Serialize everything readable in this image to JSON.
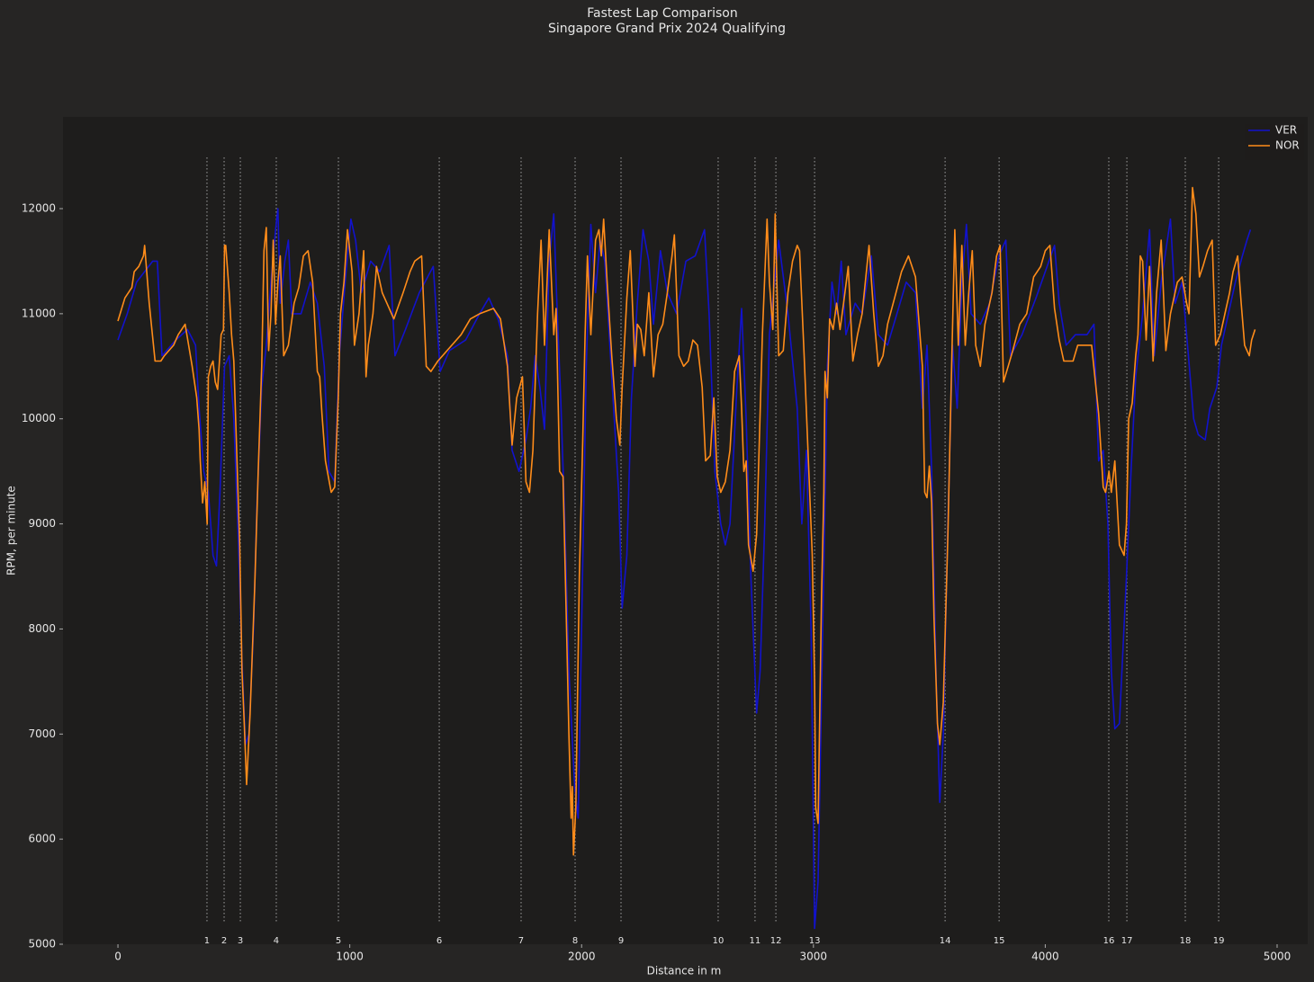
{
  "chart_data": {
    "type": "line",
    "title": "Fastest Lap Comparison",
    "subtitle": "Singapore Grand Prix 2024 Qualifying",
    "x_label": "Distance in m",
    "y_label": "RPM, per minute",
    "xlim": [
      -237,
      5132
    ],
    "ylim": [
      5000,
      12873
    ],
    "xticks": [
      0,
      1000,
      2000,
      3000,
      4000,
      5000
    ],
    "yticks": [
      5000,
      6000,
      7000,
      8000,
      9000,
      10000,
      11000,
      12000
    ],
    "grid": false,
    "legend": "upper right",
    "corner_line_range": [
      5214,
      12488
    ],
    "corner_color": "#8a8a8a",
    "corners": [
      {
        "number": 1,
        "distance": 384
      },
      {
        "number": 2,
        "distance": 458
      },
      {
        "number": 3,
        "distance": 528
      },
      {
        "number": 4,
        "distance": 683
      },
      {
        "number": 5,
        "distance": 951
      },
      {
        "number": 6,
        "distance": 1386
      },
      {
        "number": 7,
        "distance": 1739
      },
      {
        "number": 8,
        "distance": 1972
      },
      {
        "number": 9,
        "distance": 2170
      },
      {
        "number": 10,
        "distance": 2589
      },
      {
        "number": 11,
        "distance": 2748
      },
      {
        "number": 12,
        "distance": 2838
      },
      {
        "number": 13,
        "distance": 3005
      },
      {
        "number": 14,
        "distance": 3568
      },
      {
        "number": 15,
        "distance": 3801
      },
      {
        "number": 16,
        "distance": 4274
      },
      {
        "number": 17,
        "distance": 4352
      },
      {
        "number": 18,
        "distance": 4604
      },
      {
        "number": 19,
        "distance": 4748
      }
    ],
    "series": [
      {
        "name": "VER",
        "color": "#1212cc",
        "x": [
          0,
          40,
          80,
          150,
          170,
          190,
          250,
          300,
          335,
          350,
          370,
          390,
          410,
          425,
          440,
          460,
          480,
          500,
          520,
          535,
          550,
          565,
          585,
          600,
          620,
          640,
          660,
          680,
          690,
          700,
          720,
          735,
          750,
          790,
          830,
          860,
          890,
          910,
          935,
          955,
          980,
          1005,
          1025,
          1050,
          1090,
          1130,
          1170,
          1195,
          1240,
          1300,
          1360,
          1390,
          1430,
          1500,
          1560,
          1600,
          1640,
          1680,
          1700,
          1730,
          1760,
          1780,
          1800,
          1820,
          1840,
          1860,
          1880,
          1895,
          1910,
          1925,
          1945,
          1970,
          1985,
          2000,
          2020,
          2040,
          2060,
          2080,
          2100,
          2130,
          2160,
          2175,
          2195,
          2215,
          2240,
          2265,
          2290,
          2310,
          2340,
          2370,
          2410,
          2450,
          2490,
          2530,
          2550,
          2575,
          2600,
          2620,
          2640,
          2670,
          2690,
          2710,
          2730,
          2755,
          2770,
          2790,
          2810,
          2850,
          2890,
          2930,
          2950,
          2970,
          2990,
          3005,
          3020,
          3040,
          3060,
          3080,
          3100,
          3120,
          3140,
          3180,
          3210,
          3250,
          3280,
          3320,
          3360,
          3400,
          3440,
          3470,
          3490,
          3510,
          3530,
          3545,
          3560,
          3580,
          3600,
          3620,
          3640,
          3660,
          3680,
          3720,
          3760,
          3800,
          3830,
          3850,
          3900,
          3960,
          4000,
          4040,
          4060,
          4090,
          4130,
          4180,
          4210,
          4230,
          4250,
          4270,
          4285,
          4300,
          4320,
          4350,
          4370,
          4390,
          4420,
          4450,
          4470,
          4500,
          4540,
          4560,
          4590,
          4610,
          4640,
          4660,
          4690,
          4710,
          4740,
          4760,
          4790,
          4820,
          4850,
          4870,
          4885
        ],
        "values": [
          10750,
          11000,
          11300,
          11500,
          11500,
          10600,
          10750,
          10850,
          10700,
          10100,
          9500,
          9300,
          8700,
          8600,
          9300,
          10500,
          10600,
          10000,
          8800,
          7700,
          6900,
          7000,
          8000,
          9200,
          10300,
          10700,
          11300,
          11800,
          12000,
          11100,
          11500,
          11700,
          11000,
          11000,
          11300,
          11100,
          10500,
          9500,
          9400,
          10600,
          11300,
          11900,
          11700,
          11200,
          11500,
          11400,
          11650,
          10600,
          10850,
          11200,
          11450,
          10450,
          10650,
          10750,
          11000,
          11150,
          10950,
          10600,
          9700,
          9500,
          9800,
          10100,
          10600,
          10300,
          9900,
          11500,
          11950,
          11000,
          10200,
          9200,
          7600,
          6500,
          6200,
          8000,
          10500,
          11850,
          11200,
          11700,
          11500,
          10400,
          9300,
          8200,
          8700,
          10200,
          11100,
          11800,
          11500,
          10900,
          11600,
          11200,
          11000,
          11500,
          11550,
          11800,
          11000,
          9500,
          9000,
          8800,
          9000,
          10300,
          11050,
          10000,
          8500,
          7200,
          7600,
          9000,
          10800,
          11700,
          11000,
          10100,
          9000,
          9700,
          8000,
          5150,
          5600,
          8000,
          10500,
          11300,
          11000,
          11500,
          10800,
          11100,
          11000,
          11550,
          10800,
          10700,
          11000,
          11300,
          11200,
          10100,
          10700,
          9500,
          7500,
          6350,
          7000,
          9000,
          10700,
          10100,
          11300,
          11850,
          11000,
          10900,
          11100,
          11550,
          11700,
          10600,
          10800,
          11150,
          11400,
          11650,
          11100,
          10700,
          10800,
          10800,
          10900,
          9600,
          9700,
          9000,
          7600,
          7050,
          7100,
          8500,
          9500,
          10400,
          11000,
          11800,
          10600,
          11300,
          11900,
          11100,
          11300,
          10800,
          10000,
          9850,
          9800,
          10100,
          10300,
          10700,
          11000,
          11300,
          11550,
          11700,
          11800
        ]
      },
      {
        "name": "NOR",
        "color": "#ff8c1a",
        "x": [
          0,
          30,
          60,
          70,
          90,
          110,
          115,
          135,
          160,
          185,
          200,
          240,
          260,
          290,
          320,
          340,
          350,
          355,
          365,
          375,
          385,
          390,
          400,
          410,
          420,
          430,
          445,
          455,
          460,
          465,
          480,
          490,
          500,
          515,
          525,
          535,
          545,
          555,
          570,
          590,
          605,
          620,
          630,
          640,
          650,
          660,
          670,
          680,
          690,
          700,
          715,
          735,
          760,
          780,
          800,
          820,
          840,
          860,
          870,
          880,
          895,
          920,
          935,
          950,
          960,
          975,
          990,
          1010,
          1020,
          1040,
          1060,
          1070,
          1080,
          1100,
          1115,
          1140,
          1160,
          1190,
          1230,
          1260,
          1280,
          1310,
          1330,
          1350,
          1380,
          1400,
          1440,
          1480,
          1520,
          1560,
          1620,
          1650,
          1680,
          1700,
          1720,
          1745,
          1760,
          1775,
          1790,
          1810,
          1825,
          1840,
          1860,
          1880,
          1890,
          1905,
          1920,
          1935,
          1945,
          1955,
          1960,
          1965,
          1975,
          1990,
          2005,
          2015,
          2025,
          2040,
          2060,
          2075,
          2085,
          2095,
          2110,
          2130,
          2150,
          2165,
          2175,
          2195,
          2210,
          2230,
          2240,
          2255,
          2270,
          2290,
          2310,
          2330,
          2350,
          2370,
          2390,
          2400,
          2420,
          2440,
          2460,
          2480,
          2500,
          2520,
          2535,
          2555,
          2570,
          2585,
          2600,
          2620,
          2640,
          2660,
          2680,
          2690,
          2700,
          2710,
          2720,
          2740,
          2755,
          2780,
          2800,
          2810,
          2825,
          2835,
          2850,
          2870,
          2890,
          2910,
          2930,
          2940,
          2960,
          2980,
          2995,
          3005,
          3010,
          3020,
          3035,
          3045,
          3050,
          3060,
          3070,
          3085,
          3100,
          3115,
          3130,
          3150,
          3170,
          3190,
          3210,
          3240,
          3260,
          3280,
          3300,
          3320,
          3350,
          3380,
          3410,
          3440,
          3470,
          3480,
          3490,
          3500,
          3510,
          3520,
          3535,
          3545,
          3560,
          3580,
          3595,
          3610,
          3625,
          3640,
          3655,
          3670,
          3685,
          3700,
          3720,
          3740,
          3770,
          3790,
          3805,
          3820,
          3840,
          3860,
          3890,
          3920,
          3950,
          3980,
          4000,
          4020,
          4040,
          4060,
          4080,
          4120,
          4140,
          4180,
          4200,
          4230,
          4250,
          4260,
          4275,
          4285,
          4300,
          4320,
          4340,
          4350,
          4360,
          4375,
          4390,
          4400,
          4410,
          4420,
          4435,
          4450,
          4465,
          4480,
          4500,
          4520,
          4540,
          4570,
          4590,
          4610,
          4620,
          4635,
          4650,
          4665,
          4680,
          4700,
          4720,
          4735,
          4755,
          4775,
          4795,
          4810,
          4830,
          4845,
          4860,
          4880,
          4890,
          4905
        ],
        "values": [
          10930,
          11150,
          11250,
          11400,
          11450,
          11550,
          11650,
          11100,
          10550,
          10550,
          10600,
          10700,
          10800,
          10900,
          10500,
          10200,
          9900,
          9600,
          9200,
          9400,
          9000,
          10400,
          10500,
          10550,
          10350,
          10280,
          10800,
          10850,
          11650,
          11650,
          11200,
          10800,
          10550,
          9500,
          8800,
          7600,
          7100,
          6520,
          7200,
          8400,
          9500,
          10500,
          11600,
          11820,
          10650,
          11000,
          11700,
          10900,
          11300,
          11550,
          10600,
          10700,
          11100,
          11250,
          11550,
          11600,
          11300,
          10450,
          10400,
          10050,
          9600,
          9300,
          9350,
          10200,
          11000,
          11300,
          11800,
          11400,
          10700,
          11000,
          11600,
          10400,
          10700,
          11000,
          11450,
          11200,
          11100,
          10950,
          11200,
          11400,
          11500,
          11550,
          10500,
          10450,
          10550,
          10600,
          10700,
          10800,
          10950,
          11000,
          11050,
          10950,
          10500,
          9750,
          10200,
          10400,
          9400,
          9300,
          9700,
          11000,
          11700,
          10700,
          11800,
          10800,
          11050,
          9500,
          9450,
          8000,
          7000,
          6200,
          6500,
          5850,
          6300,
          8500,
          9800,
          10800,
          11550,
          10800,
          11700,
          11800,
          11550,
          11900,
          11300,
          10600,
          10000,
          9750,
          10300,
          11150,
          11600,
          10500,
          10900,
          10850,
          10600,
          11200,
          10400,
          10800,
          10900,
          11200,
          11550,
          11750,
          10600,
          10500,
          10550,
          10750,
          10700,
          10300,
          9600,
          9650,
          10200,
          9450,
          9300,
          9400,
          9700,
          10450,
          10600,
          10100,
          9500,
          9600,
          8800,
          8550,
          8900,
          10800,
          11900,
          11300,
          10850,
          11950,
          10600,
          10650,
          11200,
          11500,
          11650,
          11600,
          10600,
          9500,
          8700,
          7500,
          6300,
          6150,
          8300,
          9300,
          10450,
          10200,
          10950,
          10850,
          11100,
          10850,
          11100,
          11450,
          10550,
          10800,
          11000,
          11650,
          11000,
          10500,
          10600,
          10900,
          11150,
          11400,
          11550,
          11350,
          10500,
          9300,
          9250,
          9550,
          9200,
          8100,
          7100,
          6900,
          7300,
          8900,
          10400,
          11800,
          10700,
          11650,
          10700,
          11200,
          11600,
          10700,
          10500,
          10900,
          11200,
          11550,
          11650,
          10350,
          10500,
          10650,
          10900,
          11000,
          11350,
          11450,
          11600,
          11650,
          11050,
          10750,
          10550,
          10550,
          10700,
          10700,
          10700,
          10050,
          9350,
          9300,
          9500,
          9300,
          9600,
          8800,
          8700,
          9000,
          10000,
          10150,
          10600,
          10800,
          11550,
          11500,
          10750,
          11450,
          10550,
          11200,
          11700,
          10650,
          11000,
          11300,
          11350,
          11100,
          11000,
          12200,
          11950,
          11350,
          11450,
          11600,
          11700,
          10700,
          10800,
          11000,
          11200,
          11400,
          11550,
          11100,
          10700,
          10600,
          10750,
          10850
        ]
      }
    ]
  }
}
